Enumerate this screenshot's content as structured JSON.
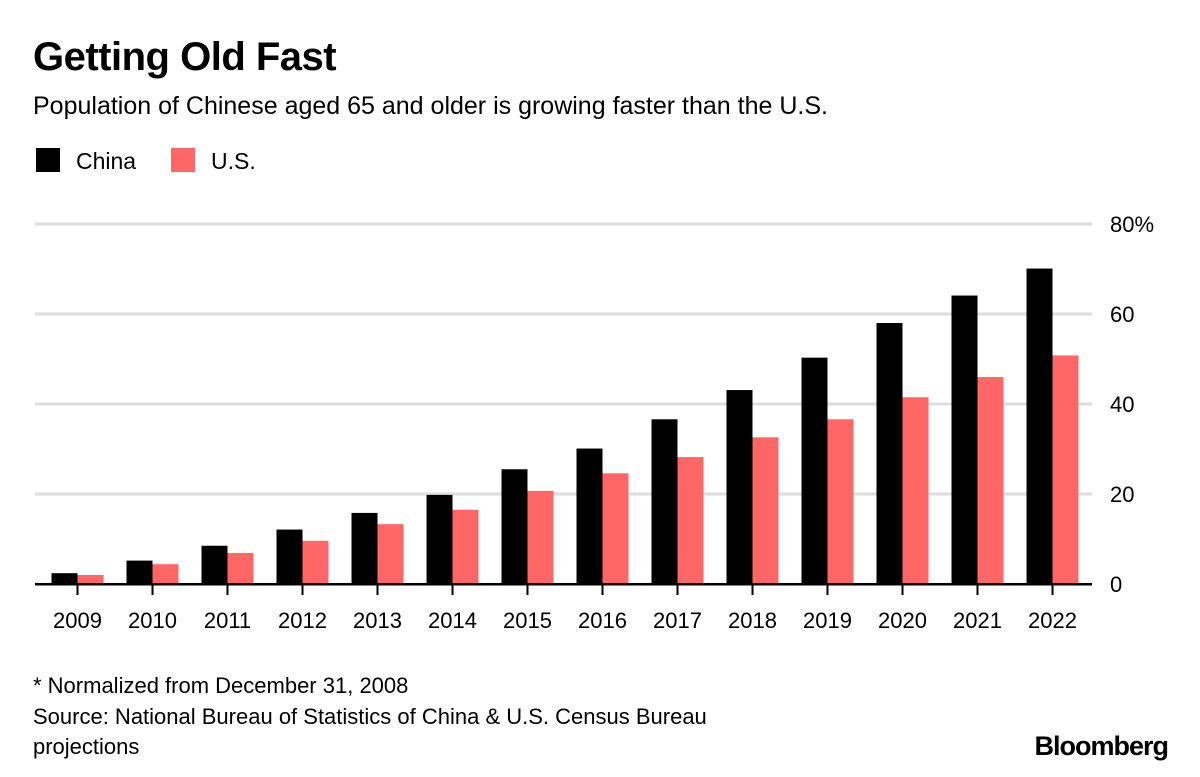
{
  "title": "Getting Old Fast",
  "subtitle": "Population of Chinese aged 65 and older is growing faster than the U.S.",
  "footnote": "* Normalized from December 31, 2008",
  "source_line1": "Source: National Bureau of Statistics of China & U.S. Census Bureau",
  "source_line2": "projections",
  "logo": "Bloomberg",
  "colors": {
    "China": "#000000",
    "U.S.": "#ff6666",
    "grid": "#dddddd"
  },
  "chart_data": {
    "type": "bar",
    "title": "Getting Old Fast",
    "subtitle": "Population of Chinese aged 65 and older is growing faster than the U.S.",
    "categories": [
      "2009",
      "2010",
      "2011",
      "2012",
      "2013",
      "2014",
      "2015",
      "2016",
      "2017",
      "2018",
      "2019",
      "2020",
      "2021",
      "2022"
    ],
    "series": [
      {
        "name": "China",
        "color": "#000000",
        "values": [
          2.4,
          5.2,
          8.5,
          12.1,
          15.8,
          19.8,
          25.5,
          30.1,
          36.6,
          43.1,
          50.3,
          58.0,
          64.1,
          70.1
        ]
      },
      {
        "name": "U.S.",
        "color": "#ff6666",
        "values": [
          2.0,
          4.4,
          6.9,
          9.6,
          13.3,
          16.5,
          20.7,
          24.6,
          28.2,
          32.6,
          36.6,
          41.5,
          46.0,
          50.8
        ]
      }
    ],
    "ylim": [
      0,
      80
    ],
    "yticks": [
      "0",
      "20",
      "40",
      "60",
      "80%"
    ],
    "ytick_values": [
      0,
      20,
      40,
      60,
      80
    ],
    "y_axis_position": "right",
    "grid": true,
    "legend_position": "top-left"
  }
}
